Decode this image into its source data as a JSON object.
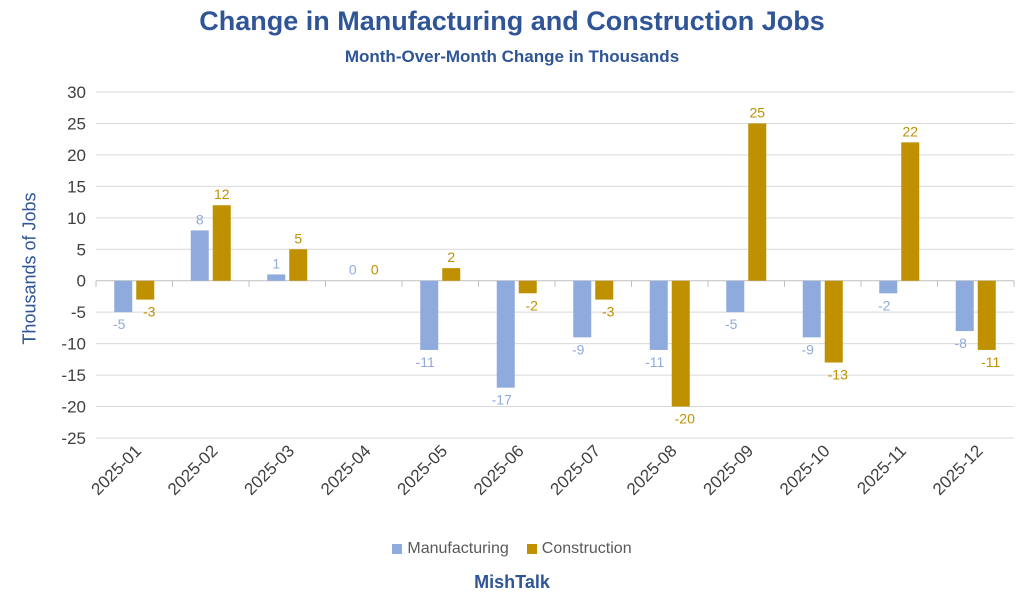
{
  "chart_data": {
    "type": "bar",
    "title": "Change in Manufacturing and Construction Jobs",
    "subtitle": "Month-Over-Month Change in Thousands",
    "xlabel": "",
    "ylabel": "Thousands of Jobs",
    "ylim": [
      -25,
      30
    ],
    "yticks": [
      30,
      25,
      20,
      15,
      10,
      5,
      0,
      -5,
      -10,
      -15,
      -20,
      -25
    ],
    "grid": true,
    "legend_position": "bottom",
    "categories": [
      "2025-01",
      "2025-02",
      "2025-03",
      "2025-04",
      "2025-05",
      "2025-06",
      "2025-07",
      "2025-08",
      "2025-09",
      "2025-10",
      "2025-11",
      "2025-12"
    ],
    "series": [
      {
        "name": "Manufacturing",
        "color": "#8FAADC",
        "values": [
          -5,
          8,
          1,
          0,
          -11,
          -17,
          -9,
          -11,
          -5,
          -9,
          -2,
          -8
        ]
      },
      {
        "name": "Construction",
        "color": "#BF9000",
        "values": [
          -3,
          12,
          5,
          0,
          2,
          -2,
          -3,
          -20,
          25,
          -13,
          22,
          -11
        ]
      }
    ],
    "footer": "MishTalk"
  }
}
